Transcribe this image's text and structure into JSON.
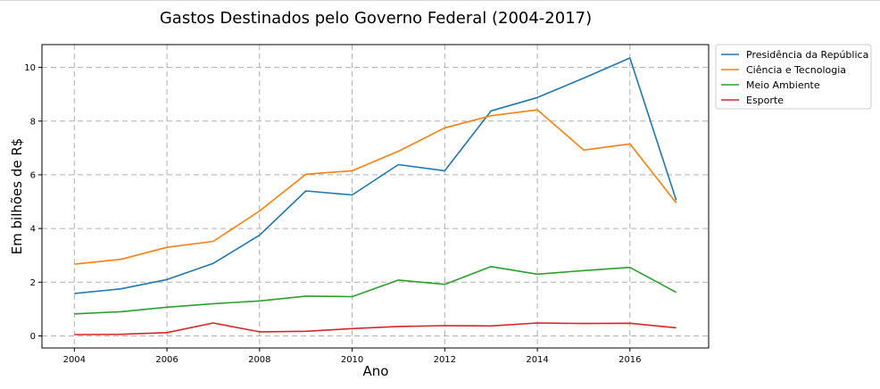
{
  "chart_data": {
    "type": "line",
    "title": "Gastos Destinados pelo Governo Federal (2004-2017)",
    "xlabel": "Ano",
    "ylabel": "Em bilhões de R$",
    "x": [
      2004,
      2005,
      2006,
      2007,
      2008,
      2009,
      2010,
      2011,
      2012,
      2013,
      2014,
      2015,
      2016,
      2017
    ],
    "xlim": [
      2003.3,
      2017.7
    ],
    "ylim": [
      -0.45,
      10.85
    ],
    "xticks": [
      "2004",
      "2006",
      "2008",
      "2010",
      "2012",
      "2014",
      "2016"
    ],
    "yticks": [
      "0",
      "2",
      "4",
      "6",
      "8",
      "10"
    ],
    "grid": true,
    "legend_position": "outside-top-right",
    "series": [
      {
        "name": "Presidência da República",
        "color": "#1f77b4",
        "values": [
          1.58,
          1.75,
          2.1,
          2.7,
          3.75,
          5.4,
          5.25,
          6.38,
          6.15,
          8.38,
          8.88,
          9.6,
          10.35,
          5.05
        ]
      },
      {
        "name": "Ciência e Tecnologia",
        "color": "#ff7f0e",
        "values": [
          2.67,
          2.85,
          3.3,
          3.52,
          4.65,
          6.02,
          6.15,
          6.88,
          7.75,
          8.2,
          8.42,
          6.92,
          7.15,
          4.95
        ]
      },
      {
        "name": "Meio Ambiente",
        "color": "#2ca02c",
        "values": [
          0.82,
          0.9,
          1.07,
          1.2,
          1.3,
          1.48,
          1.46,
          2.08,
          1.92,
          2.58,
          2.3,
          2.43,
          2.55,
          1.62
        ]
      },
      {
        "name": "Esporte",
        "color": "#d62728",
        "values": [
          0.05,
          0.06,
          0.12,
          0.48,
          0.15,
          0.17,
          0.27,
          0.35,
          0.38,
          0.37,
          0.48,
          0.46,
          0.47,
          0.3
        ]
      }
    ]
  }
}
